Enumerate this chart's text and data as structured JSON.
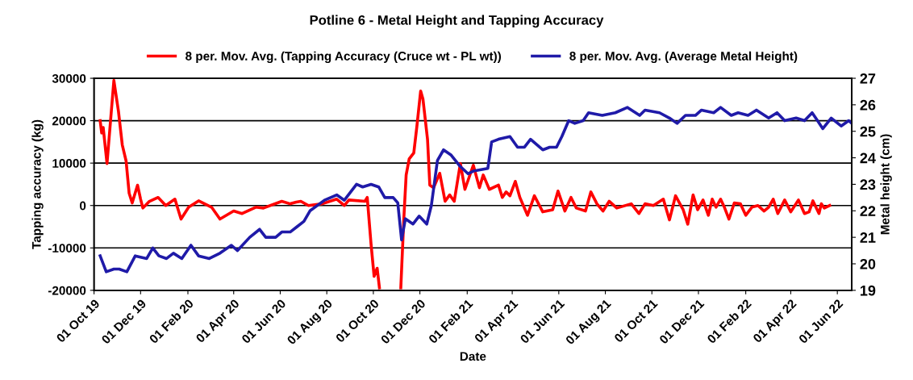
{
  "chart_data": {
    "type": "line",
    "title": "Potline 6 - Metal Height and Tapping Accuracy",
    "xlabel": "Date",
    "ylabel": "Tapping accuracy (kg)",
    "y2label": "Metal height (cm)",
    "xlim": [
      "2019-10-01",
      "2022-06-20"
    ],
    "xticks": [
      {
        "value": "2019-10-01",
        "label": "01 Oct 19"
      },
      {
        "value": "2019-12-01",
        "label": "01 Dec 19"
      },
      {
        "value": "2020-02-01",
        "label": "01 Feb 20"
      },
      {
        "value": "2020-04-01",
        "label": "01 Apr 20"
      },
      {
        "value": "2020-06-01",
        "label": "01 Jun 20"
      },
      {
        "value": "2020-08-01",
        "label": "01 Aug 20"
      },
      {
        "value": "2020-10-01",
        "label": "01 Oct 20"
      },
      {
        "value": "2020-12-01",
        "label": "01 Dec 20"
      },
      {
        "value": "2021-02-01",
        "label": "01 Feb 21"
      },
      {
        "value": "2021-04-01",
        "label": "01 Apr 21"
      },
      {
        "value": "2021-06-01",
        "label": "01 Jun 21"
      },
      {
        "value": "2021-08-01",
        "label": "01 Aug 21"
      },
      {
        "value": "2021-10-01",
        "label": "01 Oct 21"
      },
      {
        "value": "2021-12-01",
        "label": "01 Dec 21"
      },
      {
        "value": "2022-02-01",
        "label": "01 Feb 22"
      },
      {
        "value": "2022-04-01",
        "label": "01 Apr 22"
      },
      {
        "value": "2022-06-01",
        "label": "01 Jun 22"
      }
    ],
    "ylim": [
      -20000,
      30000
    ],
    "yticks": [
      -20000,
      -10000,
      0,
      10000,
      20000,
      30000
    ],
    "y2lim": [
      19,
      27
    ],
    "y2ticks": [
      19,
      20,
      21,
      22,
      23,
      24,
      25,
      26,
      27
    ],
    "grid": "y",
    "legend": "top",
    "marker": "none",
    "line_style": "solid",
    "series": [
      {
        "name": "8 per. Mov. Avg. (Tapping Accuracy (Cruce wt - PL wt))",
        "color": "#ff0000",
        "axis": "y",
        "x": [
          "2019-10-09",
          "2019-10-11",
          "2019-10-13",
          "2019-10-18",
          "2019-10-22",
          "2019-10-27",
          "2019-11-02",
          "2019-11-07",
          "2019-11-12",
          "2019-11-16",
          "2019-11-20",
          "2019-11-27",
          "2019-12-01",
          "2019-12-04",
          "2019-12-12",
          "2019-12-24",
          "2020-01-03",
          "2020-01-15",
          "2020-01-23",
          "2020-02-02",
          "2020-02-15",
          "2020-03-03",
          "2020-03-14",
          "2020-04-01",
          "2020-04-12",
          "2020-04-30",
          "2020-05-10",
          "2020-06-03",
          "2020-06-14",
          "2020-06-22",
          "2020-06-28",
          "2020-07-08",
          "2020-07-26",
          "2020-08-14",
          "2020-08-24",
          "2020-08-30",
          "2020-09-20",
          "2020-09-23",
          "2020-09-28",
          "2020-10-02",
          "2020-10-06",
          "2020-10-09",
          "2020-10-20",
          "2020-11-06",
          "2020-11-10",
          "2020-11-13",
          "2020-11-17",
          "2020-11-23",
          "2020-11-27",
          "2020-12-02",
          "2020-12-05",
          "2020-12-11",
          "2020-12-14",
          "2020-12-19",
          "2020-12-27",
          "2021-01-03",
          "2021-01-09",
          "2021-01-15",
          "2021-01-23",
          "2021-01-29",
          "2021-02-09",
          "2021-02-17",
          "2021-02-22",
          "2021-03-02",
          "2021-03-14",
          "2021-03-19",
          "2021-03-24",
          "2021-03-29",
          "2021-04-05",
          "2021-04-11",
          "2021-04-21",
          "2021-04-30",
          "2021-05-11",
          "2021-05-24",
          "2021-05-31",
          "2021-06-09",
          "2021-06-17",
          "2021-06-24",
          "2021-07-06",
          "2021-07-13",
          "2021-07-21",
          "2021-07-29",
          "2021-08-06",
          "2021-08-16",
          "2021-09-04",
          "2021-09-14",
          "2021-09-22",
          "2021-10-03",
          "2021-10-16",
          "2021-10-24",
          "2021-11-01",
          "2021-11-11",
          "2021-11-17",
          "2021-11-24",
          "2021-11-30",
          "2021-12-07",
          "2021-12-14",
          "2021-12-19",
          "2021-12-24",
          "2021-12-30",
          "2022-01-04",
          "2022-01-10",
          "2022-01-17",
          "2022-01-25",
          "2022-02-01",
          "2022-02-09",
          "2022-02-17",
          "2022-02-25",
          "2022-03-03",
          "2022-03-09",
          "2022-03-15",
          "2022-03-24",
          "2022-04-01",
          "2022-04-11",
          "2022-04-19",
          "2022-04-25",
          "2022-04-30",
          "2022-05-08",
          "2022-05-11",
          "2022-05-15",
          "2022-05-22"
        ],
        "values": [
          20000,
          17100,
          18400,
          9900,
          18600,
          29500,
          22200,
          14300,
          10500,
          2900,
          600,
          4800,
          1500,
          -600,
          900,
          1900,
          0,
          1500,
          -3200,
          -400,
          1100,
          -400,
          -3200,
          -1300,
          -1900,
          -400,
          -600,
          1000,
          400,
          800,
          1000,
          0,
          400,
          1500,
          0,
          1300,
          1000,
          1900,
          -9100,
          -16700,
          -14800,
          -19400,
          null,
          -19400,
          -2900,
          7200,
          11000,
          12400,
          18600,
          27000,
          25100,
          15600,
          4800,
          4200,
          7600,
          1000,
          2500,
          1000,
          9900,
          3800,
          9500,
          4200,
          7200,
          3800,
          4800,
          1900,
          3200,
          2300,
          5700,
          1900,
          -2300,
          2300,
          -1500,
          -1000,
          3400,
          -1300,
          1900,
          -600,
          -1300,
          3200,
          400,
          -1300,
          1000,
          -600,
          400,
          -1900,
          400,
          0,
          1500,
          -3400,
          2300,
          -1000,
          -4400,
          2500,
          -1000,
          1300,
          -2300,
          1500,
          -400,
          1500,
          -400,
          -3200,
          600,
          400,
          -2300,
          -400,
          0,
          -1300,
          -400,
          1500,
          -1900,
          1300,
          -1500,
          1300,
          -1900,
          -1500,
          1100,
          -1900,
          400,
          -600,
          0
        ]
      },
      {
        "name": "8 per. Mov. Avg. (Average Metal Height)",
        "color": "#1f1aa8",
        "axis": "y2",
        "x": [
          "2019-10-09",
          "2019-10-17",
          "2019-10-27",
          "2019-11-03",
          "2019-11-13",
          "2019-11-24",
          "2019-12-09",
          "2019-12-17",
          "2019-12-25",
          "2020-01-04",
          "2020-01-13",
          "2020-01-24",
          "2020-02-05",
          "2020-02-15",
          "2020-02-29",
          "2020-03-14",
          "2020-03-29",
          "2020-04-06",
          "2020-04-22",
          "2020-05-05",
          "2020-05-13",
          "2020-05-26",
          "2020-06-03",
          "2020-06-14",
          "2020-06-23",
          "2020-07-02",
          "2020-07-10",
          "2020-07-29",
          "2020-08-14",
          "2020-08-24",
          "2020-09-09",
          "2020-09-17",
          "2020-09-28",
          "2020-10-08",
          "2020-10-16",
          "2020-10-27",
          "2020-11-02",
          "2020-11-07",
          "2020-11-12",
          "2020-11-22",
          "2020-11-30",
          "2020-12-10",
          "2020-12-16",
          "2020-12-24",
          "2021-01-01",
          "2021-01-11",
          "2021-01-22",
          "2021-02-02",
          "2021-02-09",
          "2021-02-28",
          "2021-03-05",
          "2021-03-14",
          "2021-03-29",
          "2021-04-08",
          "2021-04-17",
          "2021-04-25",
          "2021-05-11",
          "2021-05-20",
          "2021-05-29",
          "2021-06-05",
          "2021-06-14",
          "2021-06-22",
          "2021-07-03",
          "2021-07-10",
          "2021-07-28",
          "2021-08-14",
          "2021-08-30",
          "2021-09-15",
          "2021-09-22",
          "2021-10-11",
          "2021-10-24",
          "2021-11-03",
          "2021-11-14",
          "2021-11-27",
          "2021-12-05",
          "2021-12-21",
          "2021-12-30",
          "2022-01-13",
          "2022-01-22",
          "2022-02-04",
          "2022-02-15",
          "2022-03-03",
          "2022-03-14",
          "2022-03-24",
          "2022-04-08",
          "2022-04-19",
          "2022-04-29",
          "2022-05-06",
          "2022-05-13",
          "2022-05-24",
          "2022-06-06",
          "2022-06-16",
          "2022-06-20"
        ],
        "values": [
          20.3,
          19.7,
          19.8,
          19.8,
          19.7,
          20.3,
          20.2,
          20.6,
          20.3,
          20.2,
          20.4,
          20.2,
          20.7,
          20.3,
          20.2,
          20.4,
          20.7,
          20.5,
          21.0,
          21.3,
          21.0,
          21.0,
          21.2,
          21.2,
          21.4,
          21.6,
          22.0,
          22.4,
          22.6,
          22.4,
          23.0,
          22.9,
          23.0,
          22.9,
          22.5,
          22.5,
          22.3,
          20.9,
          21.7,
          21.5,
          21.8,
          21.5,
          22.2,
          23.9,
          24.3,
          24.1,
          23.7,
          23.4,
          23.5,
          23.6,
          24.6,
          24.7,
          24.8,
          24.4,
          24.4,
          24.7,
          24.3,
          24.4,
          24.4,
          24.8,
          25.4,
          25.3,
          25.4,
          25.7,
          25.6,
          25.7,
          25.9,
          25.6,
          25.8,
          25.7,
          25.5,
          25.3,
          25.6,
          25.6,
          25.8,
          25.7,
          25.9,
          25.6,
          25.7,
          25.6,
          25.8,
          25.5,
          25.7,
          25.4,
          25.5,
          25.4,
          25.7,
          25.4,
          25.1,
          25.5,
          25.2,
          25.4,
          25.3
        ]
      }
    ]
  }
}
